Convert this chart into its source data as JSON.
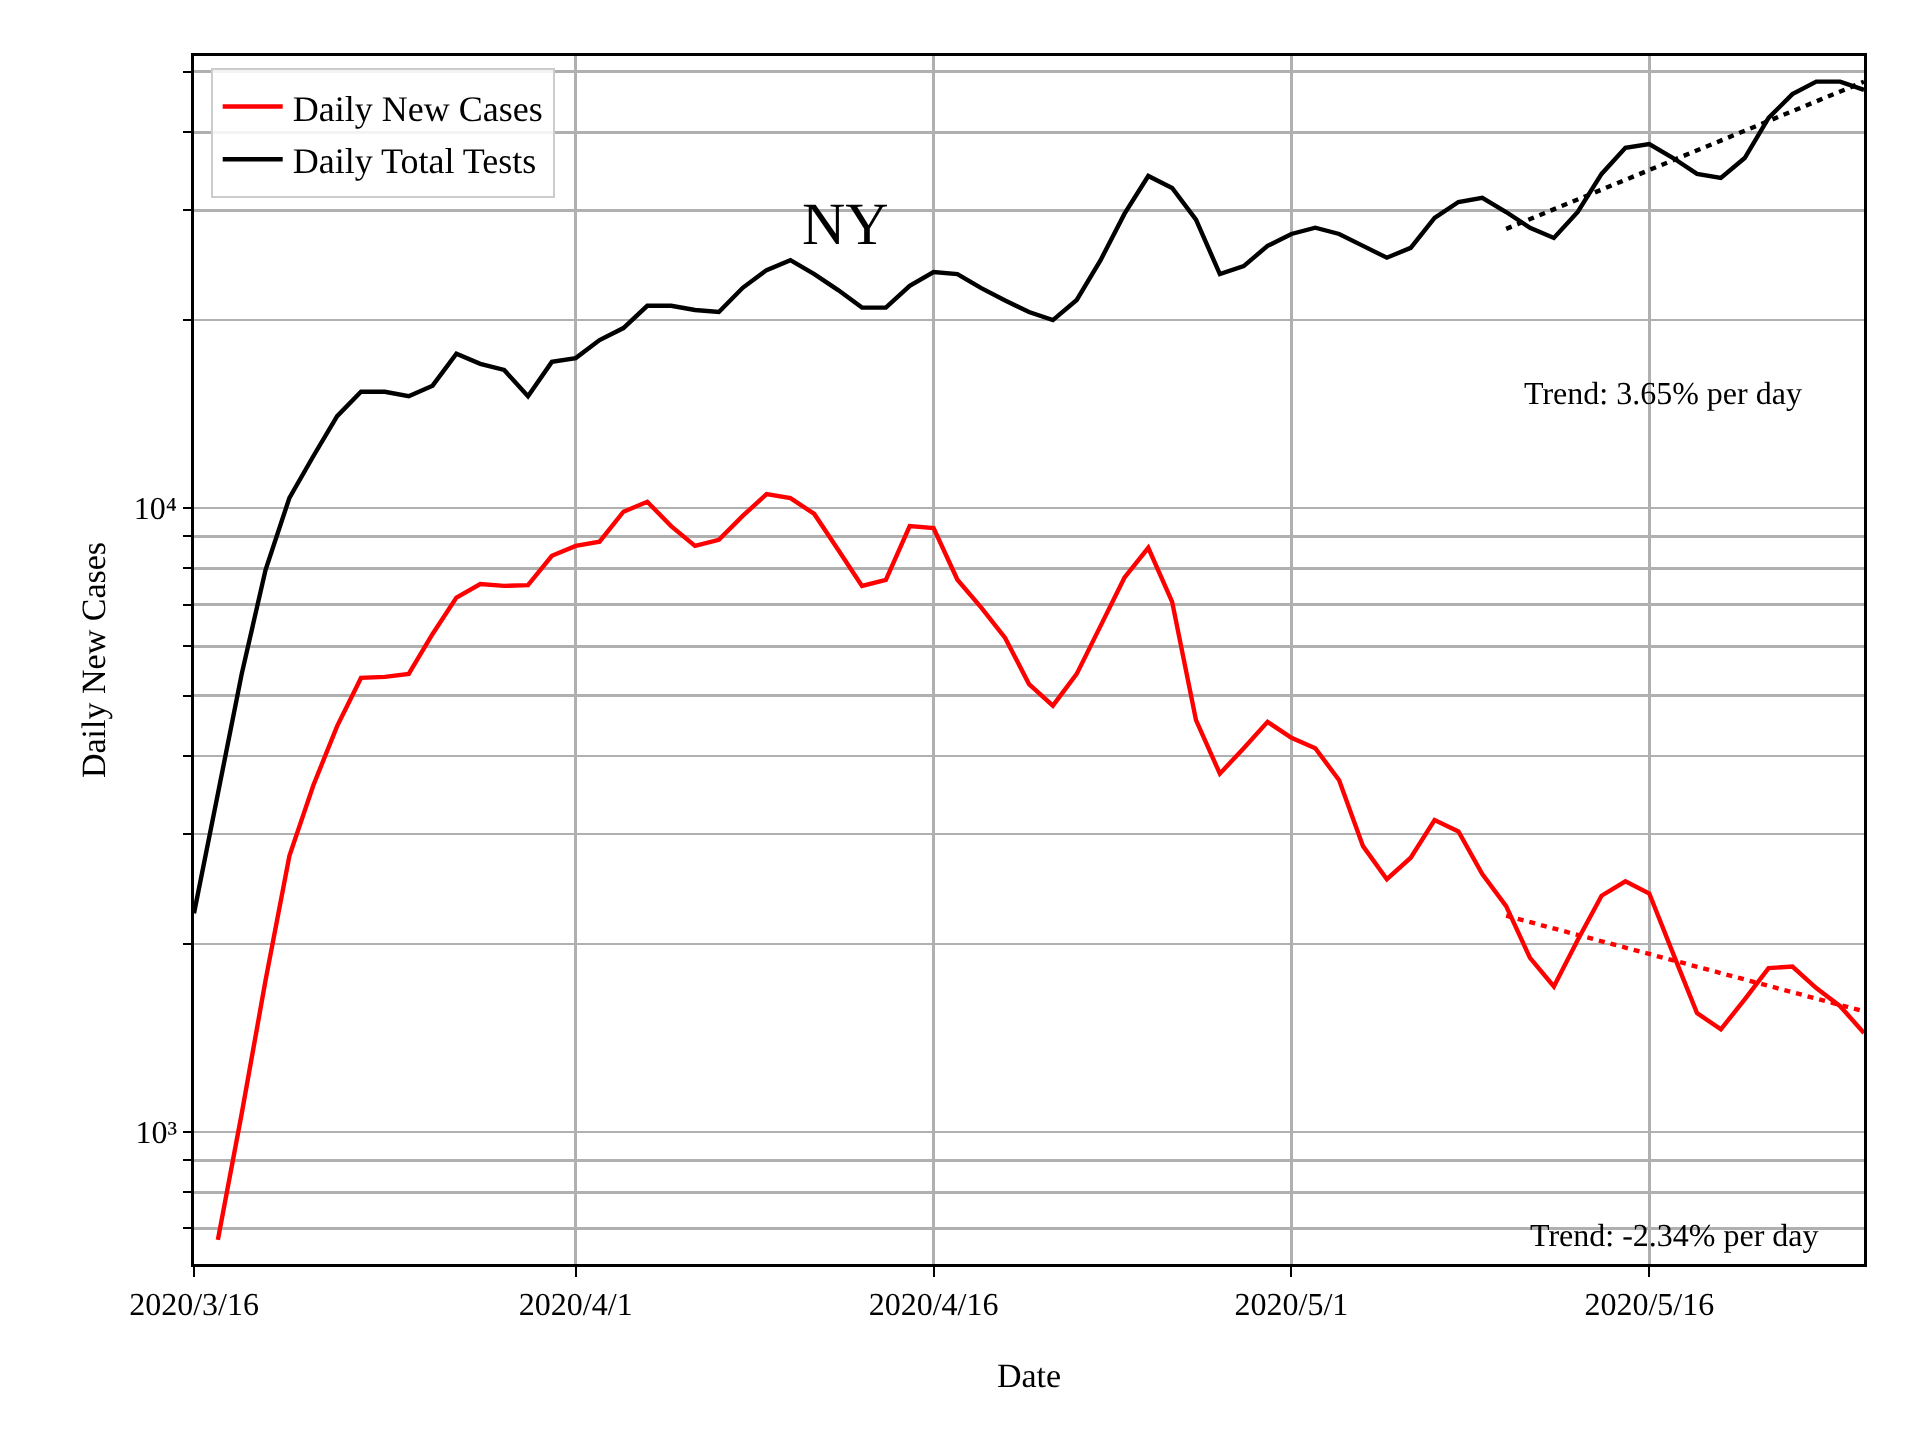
{
  "chart_data": {
    "type": "line",
    "xlabel": "Date",
    "ylabel": "Daily New Cases",
    "annotations": [
      "NY",
      "Trend: 3.65% per day",
      "Trend: -2.34% per day"
    ],
    "x": [
      "2020-03-16",
      "2020-03-17",
      "2020-03-18",
      "2020-03-19",
      "2020-03-20",
      "2020-03-21",
      "2020-03-22",
      "2020-03-23",
      "2020-03-24",
      "2020-03-25",
      "2020-03-26",
      "2020-03-27",
      "2020-03-28",
      "2020-03-29",
      "2020-03-30",
      "2020-03-31",
      "2020-04-01",
      "2020-04-02",
      "2020-04-03",
      "2020-04-04",
      "2020-04-05",
      "2020-04-06",
      "2020-04-07",
      "2020-04-08",
      "2020-04-09",
      "2020-04-10",
      "2020-04-11",
      "2020-04-12",
      "2020-04-13",
      "2020-04-14",
      "2020-04-15",
      "2020-04-16",
      "2020-04-17",
      "2020-04-18",
      "2020-04-19",
      "2020-04-20",
      "2020-04-21",
      "2020-04-22",
      "2020-04-23",
      "2020-04-24",
      "2020-04-25",
      "2020-04-26",
      "2020-04-27",
      "2020-04-28",
      "2020-04-29",
      "2020-04-30",
      "2020-05-01",
      "2020-05-02",
      "2020-05-03",
      "2020-05-04",
      "2020-05-05",
      "2020-05-06",
      "2020-05-07",
      "2020-05-08",
      "2020-05-09",
      "2020-05-10",
      "2020-05-11",
      "2020-05-12",
      "2020-05-13",
      "2020-05-14",
      "2020-05-15",
      "2020-05-16",
      "2020-05-17",
      "2020-05-18",
      "2020-05-19",
      "2020-05-20",
      "2020-05-21",
      "2020-05-22",
      "2020-05-23",
      "2020-05-24",
      "2020-05-25"
    ],
    "series": [
      {
        "name": "Daily New Cases",
        "color": "#ff0000",
        "values": [
          null,
          671,
          1070,
          1750,
          2770,
          3590,
          4470,
          5340,
          5360,
          5420,
          6280,
          7180,
          7550,
          7500,
          7520,
          8380,
          8690,
          8830,
          9860,
          10230,
          9350,
          8690,
          8890,
          9710,
          10520,
          10370,
          9780,
          8570,
          7500,
          7670,
          9350,
          9280,
          7670,
          6920,
          6190,
          5220,
          4820,
          5420,
          6470,
          7730,
          8630,
          7070,
          4570,
          3750,
          4120,
          4540,
          4280,
          4120,
          3660,
          2870,
          2540,
          2750,
          3160,
          3030,
          2590,
          2300,
          1900,
          1710,
          2030,
          2390,
          2520,
          2410,
          1930,
          1550,
          1460,
          1630,
          1830,
          1840,
          1700,
          1590,
          1440
        ]
      },
      {
        "name": "Daily Total Tests",
        "color": "#000000",
        "values": [
          2240,
          3480,
          5420,
          7960,
          10380,
          12100,
          14030,
          15350,
          15350,
          15100,
          15700,
          17660,
          17020,
          16640,
          15100,
          17140,
          17380,
          18580,
          19420,
          21080,
          21080,
          20760,
          20600,
          22530,
          24050,
          24950,
          23700,
          22340,
          20940,
          20940,
          22700,
          23880,
          23700,
          22500,
          21500,
          20600,
          20000,
          21540,
          24950,
          29590,
          34040,
          32560,
          28970,
          23700,
          24410,
          26300,
          27480,
          28120,
          27480,
          26300,
          25180,
          26110,
          29170,
          30920,
          31400,
          29800,
          28120,
          27080,
          29800,
          34300,
          37760,
          38300,
          36370,
          34300,
          33800,
          36370,
          42170,
          46050,
          48220,
          48220,
          46770
        ]
      },
      {
        "type": "line",
        "color": "#000000",
        "line_style": "dotted",
        "x": [
          "2020-05-10",
          "2020-05-25"
        ],
        "values": [
          28000,
          48200
        ]
      },
      {
        "type": "line",
        "color": "#ff0000",
        "line_style": "dotted",
        "x": [
          "2020-05-10",
          "2020-05-25"
        ],
        "values": [
          2220,
          1560
        ]
      }
    ],
    "xlim": [
      "2020-03-16",
      "2020-05-25"
    ],
    "xticks": [
      {
        "value": "2020-03-16",
        "label": "2020/3/16"
      },
      {
        "value": "2020-04-01",
        "label": "2020/4/1"
      },
      {
        "value": "2020-04-16",
        "label": "2020/4/16"
      },
      {
        "value": "2020-05-01",
        "label": "2020/5/1"
      },
      {
        "value": "2020-05-16",
        "label": "2020/5/16"
      }
    ],
    "ylim": [
      614,
      53000
    ],
    "log": true,
    "yticks": [
      {
        "value": 700,
        "label": null
      },
      {
        "value": 800,
        "label": null
      },
      {
        "value": 900,
        "label": null
      },
      {
        "value": 1000,
        "label": "10³"
      },
      {
        "value": 2000,
        "label": null
      },
      {
        "value": 3000,
        "label": null
      },
      {
        "value": 4000,
        "label": null
      },
      {
        "value": 5000,
        "label": null
      },
      {
        "value": 6000,
        "label": null
      },
      {
        "value": 7000,
        "label": null
      },
      {
        "value": 8000,
        "label": null
      },
      {
        "value": 9000,
        "label": null
      },
      {
        "value": 10000,
        "label": "10⁴"
      },
      {
        "value": 20000,
        "label": null
      },
      {
        "value": 30000,
        "label": null
      },
      {
        "value": 40000,
        "label": null
      },
      {
        "value": 50000,
        "label": null
      }
    ],
    "grid": true,
    "legend": "top left",
    "marker": "none",
    "line_style": "solid"
  }
}
